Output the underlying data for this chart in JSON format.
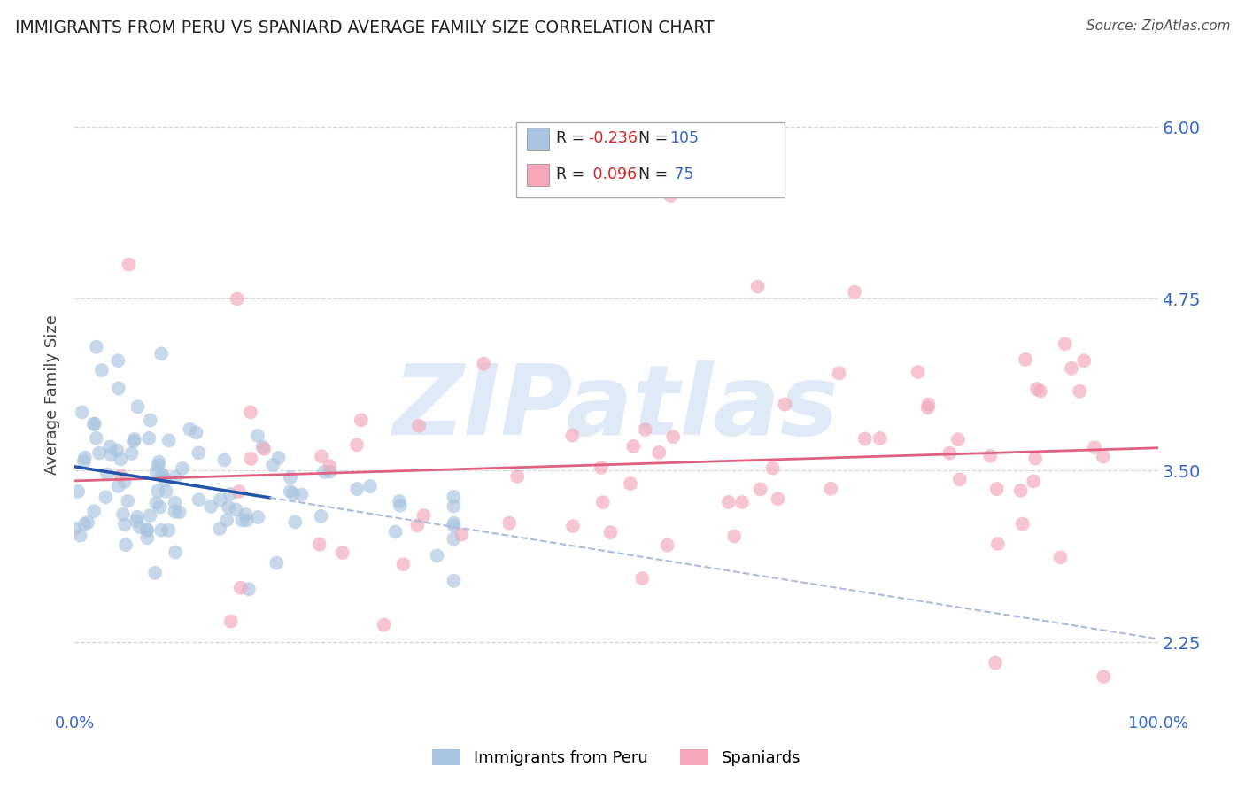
{
  "title": "IMMIGRANTS FROM PERU VS SPANIARD AVERAGE FAMILY SIZE CORRELATION CHART",
  "source": "Source: ZipAtlas.com",
  "xlabel": "",
  "ylabel": "Average Family Size",
  "legend_label1": "Immigrants from Peru",
  "legend_label2": "Spaniards",
  "R1": -0.236,
  "N1": 105,
  "R2": 0.096,
  "N2": 75,
  "xlim": [
    0.0,
    100.0
  ],
  "ylim": [
    1.75,
    6.35
  ],
  "yticks": [
    2.25,
    3.5,
    4.75,
    6.0
  ],
  "xticks": [
    0.0,
    100.0
  ],
  "xtick_labels": [
    "0.0%",
    "100.0%"
  ],
  "color_peru": "#a8c4e0",
  "color_spain": "#f4a7b9",
  "trendline_peru_solid": "#2255aa",
  "trendline_peru_dash": "#aabbdd",
  "trendline_spain": "#e06080",
  "watermark": "ZIPatlas",
  "watermark_color": "#c8d8f0",
  "background": "#ffffff",
  "grid_color": "#cccccc",
  "seed": 7,
  "legend_R1_color": "#cc0000",
  "legend_N1_color": "#3366cc",
  "legend_text_color": "#3366cc",
  "ytick_color": "#3366cc",
  "xtick_color": "#3366cc"
}
